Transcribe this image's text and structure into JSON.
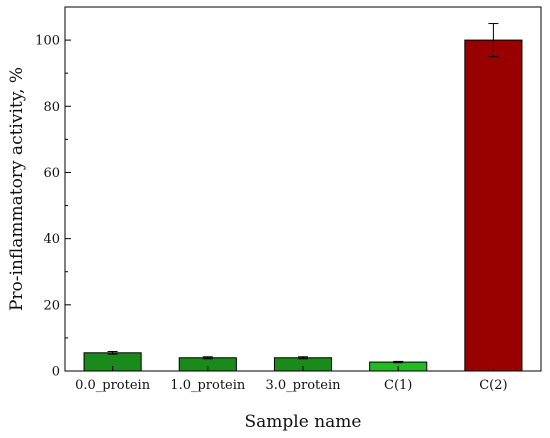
{
  "chart_data": {
    "type": "bar",
    "title": "",
    "xlabel": "Sample name",
    "ylabel": "Pro-inflammatory activity, %",
    "categories": [
      "0.0_protein",
      "1.0_protein",
      "3.0_protein",
      "C(1)",
      "C(2)"
    ],
    "values": [
      5.5,
      4.0,
      4.0,
      2.7,
      100
    ],
    "errors": [
      0.4,
      0.3,
      0.3,
      0.2,
      5
    ],
    "bar_colors": [
      "#1a8a1a",
      "#1a8a1a",
      "#1a8a1a",
      "#22bb22",
      "#990000"
    ],
    "ylim": [
      0,
      110
    ],
    "yticks": [
      0,
      20,
      40,
      60,
      80,
      100
    ],
    "grid": false,
    "legend": "none"
  }
}
